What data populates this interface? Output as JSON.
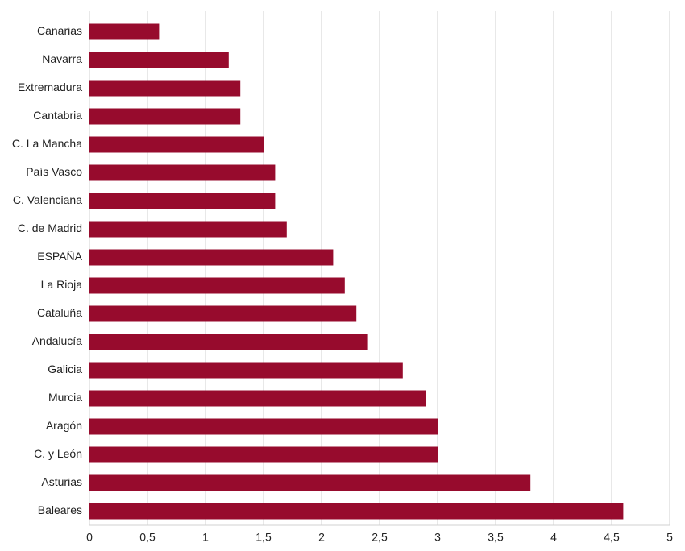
{
  "chart_data": {
    "type": "barh",
    "categories": [
      "Canarias",
      "Navarra",
      "Extremadura",
      "Cantabria",
      "C. La Mancha",
      "País Vasco",
      "C. Valenciana",
      "C. de Madrid",
      "ESPAÑA",
      "La Rioja",
      "Cataluña",
      "Andalucía",
      "Galicia",
      "Murcia",
      "Aragón",
      "C. y León",
      "Asturias",
      "Baleares"
    ],
    "values": [
      0.6,
      1.2,
      1.3,
      1.3,
      1.5,
      1.6,
      1.6,
      1.7,
      2.1,
      2.2,
      2.3,
      2.4,
      2.7,
      2.9,
      3.0,
      3.0,
      3.8,
      4.6
    ],
    "color": "#970b2d",
    "xlim": [
      0,
      5
    ],
    "xticks": [
      0,
      {
        "value": 0.5,
        "label": "0,5"
      },
      1,
      {
        "value": 1.5,
        "label": "1,5"
      },
      2,
      {
        "value": 2.5,
        "label": "2,5"
      },
      3,
      {
        "value": 3.5,
        "label": "3,5"
      },
      4,
      {
        "value": 4.5,
        "label": "4,5"
      },
      5
    ],
    "grid": true
  }
}
